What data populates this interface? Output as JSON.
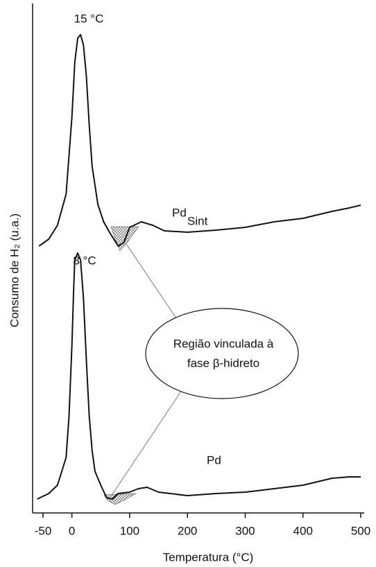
{
  "chart_data": {
    "type": "line",
    "xlabel": "Temperatura (°C)",
    "ylabel": "Consumo de H₂ (u.a.)",
    "xlim": [
      -50,
      500
    ],
    "xticks": [
      -50,
      0,
      100,
      200,
      300,
      400,
      500
    ],
    "ylim": [
      0,
      74
    ],
    "series": [
      {
        "color": "#111111",
        "x": [
          -57,
          -40,
          -25,
          -10,
          0,
          5,
          10,
          15,
          20,
          25,
          30,
          35,
          45,
          55,
          65,
          80,
          90,
          100,
          120,
          140,
          160,
          200,
          250,
          300,
          350,
          400,
          450,
          480,
          500
        ],
        "values": [
          38.5,
          39.5,
          41.5,
          46,
          57,
          65,
          68.5,
          69,
          67.5,
          63,
          56,
          50,
          44.5,
          42,
          40.5,
          38.5,
          39,
          41.2,
          42,
          41.5,
          40.7,
          40.5,
          40.8,
          41.2,
          42,
          42.5,
          43.5,
          44,
          44.4
        ]
      },
      {
        "color": "#111111",
        "x": [
          -60,
          -40,
          -25,
          -10,
          -5,
          0,
          3,
          5,
          10,
          15,
          20,
          25,
          30,
          35,
          40,
          50,
          60,
          70,
          80,
          100,
          115,
          130,
          150,
          200,
          250,
          300,
          350,
          400,
          450,
          480,
          500
        ],
        "values": [
          2,
          2.8,
          4,
          8,
          14,
          24,
          32,
          36.5,
          37.5,
          36.5,
          31,
          22,
          14,
          9,
          6,
          4,
          2.2,
          2,
          2.8,
          3,
          3.5,
          3.7,
          3,
          2.5,
          2.8,
          3,
          3.5,
          4,
          5,
          5.2,
          5.2
        ]
      }
    ],
    "annotations": [
      "15 °C",
      "8 °C",
      "Pd",
      "Sint",
      "Pd",
      "Região vinculada à",
      "fase β-hidreto"
    ]
  }
}
